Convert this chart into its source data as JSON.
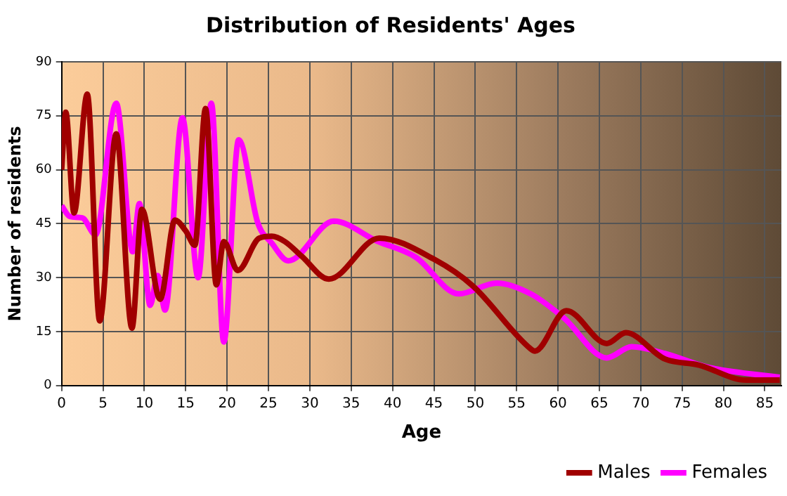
{
  "chart_data": {
    "type": "line",
    "title": "Distribution of Residents' Ages",
    "xlabel": "Age",
    "ylabel": "Number of residents",
    "xlim": [
      0,
      87
    ],
    "xticks": [
      0,
      5,
      10,
      15,
      20,
      25,
      30,
      35,
      40,
      45,
      50,
      55,
      60,
      65,
      70,
      75,
      80,
      85
    ],
    "ylim": [
      0,
      90
    ],
    "yticks": [
      0,
      15,
      30,
      45,
      60,
      75,
      90
    ],
    "grid": true,
    "legend": "bottom right",
    "marker": "none",
    "line_style": "solid",
    "series": [
      {
        "name": "Males",
        "color": "#a00000",
        "x": [
          0,
          0.5,
          1.5,
          3.1,
          4.6,
          6.6,
          8.5,
          9.7,
          11.9,
          13.7,
          15,
          16.1,
          17.4,
          18.7,
          19.6,
          21.3,
          23.9,
          25.4,
          27,
          29,
          32.3,
          38.4,
          45.1,
          49.7,
          56.7,
          57.2,
          61,
          65.9,
          68.2,
          72.9,
          77,
          82.8,
          86.8
        ],
        "values": [
          60,
          76,
          48,
          81,
          18,
          70,
          16,
          49,
          24,
          46,
          43,
          39,
          77,
          28,
          40,
          32,
          41,
          41.5,
          40,
          36,
          29.6,
          41,
          35,
          27.7,
          10.2,
          9.6,
          20.8,
          11.7,
          14.7,
          7.4,
          5.7,
          1.5,
          1.5
        ]
      },
      {
        "name": "Females",
        "color": "#ff00ff",
        "x": [
          0,
          1,
          2.5,
          4.1,
          6.6,
          8.6,
          9.4,
          10.7,
          11.6,
          12.5,
          14.6,
          16.5,
          18.1,
          19.6,
          21.4,
          23.7,
          25.4,
          27.4,
          32.9,
          38.1,
          42.8,
          48,
          52.6,
          56.7,
          60.7,
          65.9,
          68.9,
          72.9,
          78.1,
          86.8
        ],
        "values": [
          50,
          47,
          46.6,
          41.9,
          78.5,
          37.2,
          50.6,
          22.3,
          30.6,
          21,
          74.4,
          30,
          78.5,
          12.1,
          68.3,
          45.3,
          39.6,
          34.7,
          45.7,
          40.2,
          35.7,
          25.5,
          28.5,
          25.5,
          18.8,
          7.7,
          10.8,
          8.9,
          5.1,
          2.3
        ]
      }
    ]
  }
}
